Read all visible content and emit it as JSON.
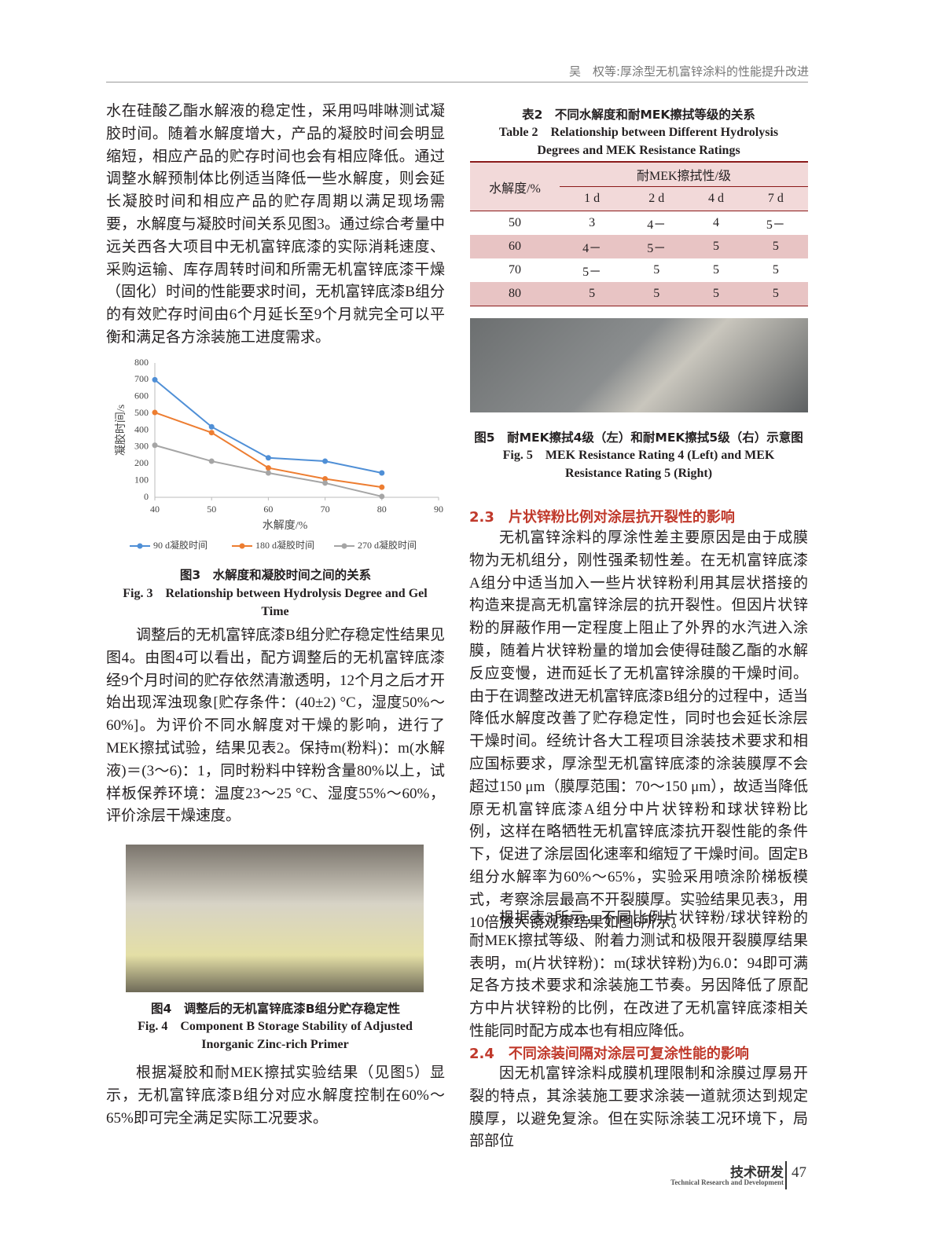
{
  "header": {
    "running_title": "吴　权等:厚涂型无机富锌涂料的性能提升改进"
  },
  "left": {
    "p1": "水在硅酸乙酯水解液的稳定性，采用吗啡啉测试凝胶时间。随着水解度增大，产品的凝胶时间会明显缩短，相应产品的贮存时间也会有相应降低。通过调整水解预制体比例适当降低一些水解度，则会延长凝胶时间和相应产品的贮存周期以满足现场需要，水解度与凝胶时间关系见图3。通过综合考量中远关西各大项目中无机富锌底漆的实际消耗速度、采购运输、库存周转时间和所需无机富锌底漆干燥（固化）时间的性能要求时间，无机富锌底漆B组分的有效贮存时间由6个月延长至9个月就完全可以平衡和满足各方涂装施工进度需求。",
    "fig3_caption_cn": "图3　水解度和凝胶时间之间的关系",
    "fig3_caption_en": "Fig. 3　Relationship between Hydrolysis Degree and Gel Time",
    "p2": "调整后的无机富锌底漆B组分贮存稳定性结果见图4。由图4可以看出，配方调整后的无机富锌底漆经9个月时间的贮存依然清澈透明，12个月之后才开始出现浑浊现象[贮存条件：(40±2) °C，湿度50%～60%]。为评价不同水解度对干燥的影响，进行了MEK擦拭试验，结果见表2。保持m(粉料)：m(水解液)＝(3～6)：1，同时粉料中锌粉含量80%以上，试样板保养环境：温度23～25 °C、湿度55%～60%，评价涂层干燥速度。",
    "fig4_caption_cn": "图4　调整后的无机富锌底漆B组分贮存稳定性",
    "fig4_caption_en": "Fig. 4　Component B Storage Stability of Adjusted Inorganic Zinc-rich Primer",
    "p3": "根据凝胶和耐MEK擦拭实验结果（见图5）显示，无机富锌底漆B组分对应水解度控制在60%～65%即可完全满足实际工况要求。"
  },
  "chart_data": {
    "type": "line",
    "x_label": "水解度/%",
    "y_label": "凝胶时间/s",
    "x": [
      40,
      50,
      60,
      70,
      80
    ],
    "xlim": [
      40,
      90
    ],
    "xticks": [
      40,
      50,
      60,
      70,
      80,
      90
    ],
    "ylim": [
      0,
      800
    ],
    "yticks": [
      0,
      100,
      200,
      300,
      400,
      500,
      600,
      700,
      800
    ],
    "grid": false,
    "legend": "bottom",
    "series": [
      {
        "name": "90 d凝胶时间",
        "color": "#4f8fd6",
        "values": [
          700,
          420,
          235,
          215,
          145
        ]
      },
      {
        "name": "180 d凝胶时间",
        "color": "#ed7d31",
        "values": [
          505,
          385,
          175,
          110,
          60
        ]
      },
      {
        "name": "270 d凝胶时间",
        "color": "#a5a5a5",
        "values": [
          310,
          215,
          145,
          85,
          5
        ]
      }
    ]
  },
  "table2": {
    "caption_cn": "表2　不同水解度和耐MEK擦拭等级的关系",
    "caption_en": "Table 2　Relationship between Different Hydrolysis Degrees and MEK Resistance Ratings",
    "row_header": "水解度/%",
    "group_header": "耐MEK擦拭性/级",
    "columns": [
      "1 d",
      "2 d",
      "4 d",
      "7 d"
    ],
    "rows": [
      [
        "50",
        "3",
        "4－",
        "4",
        "5－"
      ],
      [
        "60",
        "4－",
        "5－",
        "5",
        "5"
      ],
      [
        "70",
        "5－",
        "5",
        "5",
        "5"
      ],
      [
        "80",
        "5",
        "5",
        "5",
        "5"
      ]
    ]
  },
  "right": {
    "fig5_caption_cn": "图5　耐MEK擦拭4级（左）和耐MEK擦拭5级（右）示意图",
    "fig5_caption_en": "Fig. 5　MEK Resistance Rating 4 (Left) and MEK Resistance Rating 5 (Right)",
    "sec23": "2.3　片状锌粉比例对涂层抗开裂性的影响",
    "p4": "无机富锌涂料的厚涂性差主要原因是由于成膜物为无机组分，刚性强柔韧性差。在无机富锌底漆A组分中适当加入一些片状锌粉利用其层状搭接的构造来提高无机富锌涂层的抗开裂性。但因片状锌粉的屏蔽作用一定程度上阻止了外界的水汽进入涂膜，随着片状锌粉量的增加会使得硅酸乙酯的水解反应变慢，进而延长了无机富锌涂膜的干燥时间。由于在调整改进无机富锌底漆B组分的过程中，适当降低水解度改善了贮存稳定性，同时也会延长涂层干燥时间。经统计各大工程项目涂装技术要求和相应国标要求，厚涂型无机富锌底漆的涂装膜厚不会超过150 μm（膜厚范围：70～150 μm），故适当降低原无机富锌底漆A组分中片状锌粉和球状锌粉比例，这样在略牺牲无机富锌底漆抗开裂性能的条件下，促进了涂层固化速率和缩短了干燥时间。固定B组分水解率为60%～65%，实验采用喷涂阶梯板模式，考察涂层最高不开裂膜厚。实验结果见表3，用10倍放大镜观察结果如图6所示。",
    "p5": "根据表3所示，不同比例片状锌粉/球状锌粉的耐MEK擦拭等级、附着力测试和极限开裂膜厚结果表明，m(片状锌粉)：m(球状锌粉)为6.0：94即可满足各方技术要求和涂装施工节奏。另因降低了原配方中片状锌粉的比例，在改进了无机富锌底漆相关性能同时配方成本也有相应降低。",
    "sec24": "2.4　不同涂装间隔对涂层可复涂性能的影响",
    "p6": "因无机富锌涂料成膜机理限制和涂膜过厚易开裂的特点，其涂装施工要求涂装一道就须达到规定膜厚，以避免复涂。但在实际涂装工况环境下，局部部位"
  },
  "footer": {
    "section_cn": "技术研发",
    "section_en": "Technical Research and Development",
    "page": "47"
  }
}
